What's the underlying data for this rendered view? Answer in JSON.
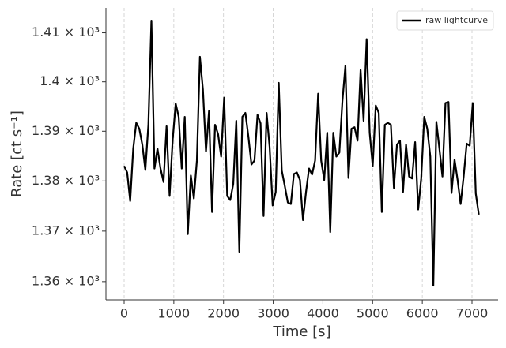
{
  "chart_data": {
    "type": "line",
    "x_label": "Time [s]",
    "y_label": "Rate [ct s⁻¹]",
    "x": [
      0,
      61,
      122,
      183,
      244,
      305,
      366,
      427,
      488,
      549,
      610,
      671,
      732,
      793,
      854,
      915,
      976,
      1037,
      1098,
      1159,
      1220,
      1281,
      1342,
      1403,
      1464,
      1525,
      1586,
      1647,
      1708,
      1769,
      1830,
      1891,
      1952,
      2013,
      2074,
      2135,
      2196,
      2257,
      2318,
      2379,
      2440,
      2501,
      2562,
      2623,
      2684,
      2745,
      2806,
      2867,
      2928,
      2989,
      3050,
      3111,
      3172,
      3233,
      3294,
      3355,
      3416,
      3477,
      3538,
      3599,
      3660,
      3721,
      3782,
      3843,
      3904,
      3965,
      4026,
      4087,
      4148,
      4209,
      4270,
      4331,
      4392,
      4453,
      4514,
      4575,
      4636,
      4697,
      4758,
      4819,
      4880,
      4941,
      5002,
      5063,
      5124,
      5185,
      5246,
      5307,
      5368,
      5429,
      5490,
      5551,
      5612,
      5673,
      5734,
      5795,
      5856,
      5917,
      5978,
      6039,
      6100,
      6161,
      6222,
      6283,
      6344,
      6405,
      6466,
      6527,
      6588,
      6649,
      6710,
      6771,
      6832,
      6893,
      6954,
      7015,
      7076,
      7137
    ],
    "series": [
      {
        "name": "raw lightcurve",
        "color": "#000000",
        "values": [
          1383.0,
          1381.7,
          1376.0,
          1386.5,
          1391.7,
          1390.5,
          1387.3,
          1382.2,
          1391.3,
          1412.5,
          1382.5,
          1386.5,
          1382.5,
          1379.8,
          1391.0,
          1377.0,
          1388.1,
          1395.6,
          1392.9,
          1382.5,
          1392.9,
          1369.4,
          1381.1,
          1376.5,
          1384.1,
          1405.1,
          1398.4,
          1385.9,
          1394.1,
          1373.8,
          1391.3,
          1389.4,
          1384.9,
          1396.8,
          1377.0,
          1376.2,
          1379.4,
          1392.1,
          1365.9,
          1392.9,
          1393.7,
          1388.9,
          1383.3,
          1384.1,
          1393.3,
          1391.6,
          1373.0,
          1393.7,
          1386.8,
          1375.1,
          1377.8,
          1399.8,
          1382.1,
          1379.0,
          1375.7,
          1375.4,
          1381.4,
          1381.7,
          1380.2,
          1372.2,
          1377.8,
          1382.5,
          1381.3,
          1384.1,
          1397.6,
          1384.1,
          1380.2,
          1389.7,
          1369.8,
          1389.7,
          1384.9,
          1385.7,
          1396.0,
          1403.3,
          1380.6,
          1390.5,
          1390.8,
          1388.1,
          1402.4,
          1392.1,
          1408.7,
          1389.7,
          1383.0,
          1395.2,
          1393.7,
          1373.8,
          1391.3,
          1391.7,
          1391.3,
          1378.6,
          1387.3,
          1388.1,
          1377.8,
          1387.3,
          1380.9,
          1380.5,
          1387.8,
          1374.3,
          1380.5,
          1392.9,
          1390.5,
          1384.9,
          1359.2,
          1391.9,
          1386.5,
          1380.9,
          1395.7,
          1395.9,
          1377.6,
          1384.3,
          1380.2,
          1375.4,
          1380.9,
          1387.5,
          1387.1,
          1395.7,
          1377.5,
          1373.3
        ]
      }
    ],
    "xlim": [
      -366,
      7525
    ],
    "xticks": [
      0,
      1000,
      2000,
      3000,
      4000,
      5000,
      6000,
      7000
    ],
    "ylim": [
      1356.4,
      1415.1
    ],
    "y_scale": "log",
    "yticks": [
      {
        "value": 1360,
        "label": "1.36 × 10³"
      },
      {
        "value": 1370,
        "label": "1.37 × 10³"
      },
      {
        "value": 1380,
        "label": "1.38 × 10³"
      },
      {
        "value": 1390,
        "label": "1.39 × 10³"
      },
      {
        "value": 1400,
        "label": "1.4 × 10³"
      },
      {
        "value": 1410,
        "label": "1.41 × 10³"
      }
    ],
    "x_grid": true,
    "legend": "upper-right"
  }
}
